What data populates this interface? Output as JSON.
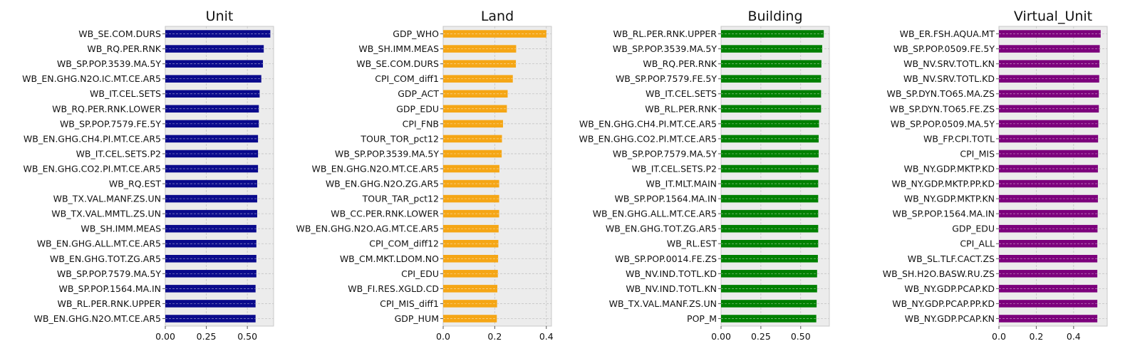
{
  "chart_data": [
    {
      "type": "bar",
      "orientation": "horizontal",
      "title": "Unit",
      "color": "#0a0a8c",
      "xlim": [
        0,
        0.66
      ],
      "xticks": [
        0,
        0.25,
        0.5
      ],
      "xtick_labels": [
        "0.00",
        "0.25",
        "0.50"
      ],
      "grid": true,
      "categories": [
        "WB_SE.COM.DURS",
        "WB_RQ.PER.RNK",
        "WB_SP.POP.3539.MA.5Y",
        "WB_EN.GHG.N2O.IC.MT.CE.AR5",
        "WB_IT.CEL.SETS",
        "WB_RQ.PER.RNK.LOWER",
        "WB_SP.POP.7579.FE.5Y",
        "WB_EN.GHG.CH4.PI.MT.CE.AR5",
        "WB_IT.CEL.SETS.P2",
        "WB_EN.GHG.CO2.PI.MT.CE.AR5",
        "WB_RQ.EST",
        "WB_TX.VAL.MANF.ZS.UN",
        "WB_TX.VAL.MMTL.ZS.UN",
        "WB_SH.IMM.MEAS",
        "WB_EN.GHG.ALL.MT.CE.AR5",
        "WB_EN.GHG.TOT.ZG.AR5",
        "WB_SP.POP.7579.MA.5Y",
        "WB_SP.POP.1564.MA.IN",
        "WB_RL.PER.RNK.UPPER",
        "WB_EN.GHG.N2O.MT.CE.AR5"
      ],
      "values": [
        0.64,
        0.6,
        0.595,
        0.585,
        0.575,
        0.57,
        0.57,
        0.565,
        0.565,
        0.565,
        0.56,
        0.56,
        0.56,
        0.555,
        0.555,
        0.555,
        0.555,
        0.55,
        0.55,
        0.55
      ]
    },
    {
      "type": "bar",
      "orientation": "horizontal",
      "title": "Land",
      "color": "#f5a615",
      "xlim": [
        0,
        0.42
      ],
      "xticks": [
        0,
        0.2,
        0.4
      ],
      "xtick_labels": [
        "0.0",
        "0.2",
        "0.4"
      ],
      "grid": true,
      "categories": [
        "GDP_WHO",
        "WB_SH.IMM.MEAS",
        "WB_SE.COM.DURS",
        "CPI_COM_diff1",
        "GDP_ACT",
        "GDP_EDU",
        "CPI_FNB",
        "TOUR_TOR_pct12",
        "WB_SP.POP.3539.MA.5Y",
        "WB_EN.GHG.N2O.MT.CE.AR5",
        "WB_EN.GHG.N2O.ZG.AR5",
        "TOUR_TAR_pct12",
        "WB_CC.PER.RNK.LOWER",
        "WB_EN.GHG.N2O.AG.MT.CE.AR5",
        "CPI_COM_diff12",
        "WB_CM.MKT.LDOM.NO",
        "CPI_EDU",
        "WB_FI.RES.XGLD.CD",
        "CPI_MIS_diff1",
        "GDP_HUM"
      ],
      "values": [
        0.4,
        0.283,
        0.282,
        0.27,
        0.25,
        0.247,
        0.232,
        0.228,
        0.227,
        0.218,
        0.217,
        0.217,
        0.217,
        0.215,
        0.214,
        0.213,
        0.212,
        0.21,
        0.209,
        0.208
      ]
    },
    {
      "type": "bar",
      "orientation": "horizontal",
      "title": "Building",
      "color": "#008000",
      "xlim": [
        0,
        0.68
      ],
      "xticks": [
        0,
        0.25,
        0.5
      ],
      "xtick_labels": [
        "0.00",
        "0.25",
        "0.50"
      ],
      "grid": true,
      "categories": [
        "WB_RL.PER.RNK.UPPER",
        "WB_SP.POP.3539.MA.5Y",
        "WB_RQ.PER.RNK",
        "WB_SP.POP.7579.FE.5Y",
        "WB_IT.CEL.SETS",
        "WB_RL.PER.RNK",
        "WB_EN.GHG.CH4.PI.MT.CE.AR5",
        "WB_EN.GHG.CO2.PI.MT.CE.AR5",
        "WB_SP.POP.7579.MA.5Y",
        "WB_IT.CEL.SETS.P2",
        "WB_IT.MLT.MAIN",
        "WB_SP.POP.1564.MA.IN",
        "WB_EN.GHG.ALL.MT.CE.AR5",
        "WB_EN.GHG.TOT.ZG.AR5",
        "WB_RL.EST",
        "WB_SP.POP.0014.FE.ZS",
        "WB_NV.IND.TOTL.KD",
        "WB_NV.IND.TOTL.KN",
        "WB_TX.VAL.MANF.ZS.UN",
        "POP_M"
      ],
      "values": [
        0.645,
        0.635,
        0.63,
        0.628,
        0.628,
        0.628,
        0.615,
        0.613,
        0.613,
        0.612,
        0.61,
        0.61,
        0.61,
        0.61,
        0.61,
        0.608,
        0.603,
        0.603,
        0.6,
        0.598
      ]
    },
    {
      "type": "bar",
      "orientation": "horizontal",
      "title": "Virtual_Unit",
      "color": "#7c007c",
      "xlim": [
        0,
        0.58
      ],
      "xticks": [
        0,
        0.2,
        0.4
      ],
      "xtick_labels": [
        "0.0",
        "0.2",
        "0.4"
      ],
      "grid": true,
      "categories": [
        "WB_ER.FSH.AQUA.MT",
        "WB_SP.POP.0509.FE.5Y",
        "WB_NV.SRV.TOTL.KN",
        "WB_NV.SRV.TOTL.KD",
        "WB_SP.DYN.TO65.MA.ZS",
        "WB_SP.DYN.TO65.FE.ZS",
        "WB_SP.POP.0509.MA.5Y",
        "WB_FP.CPI.TOTL",
        "CPI_MIS",
        "WB_NY.GDP.MKTP.KD",
        "WB_NY.GDP.MKTP.PP.KD",
        "WB_NY.GDP.MKTP.KN",
        "WB_SP.POP.1564.MA.IN",
        "GDP_EDU",
        "CPI_ALL",
        "WB_SL.TLF.CACT.ZS",
        "WB_SH.H2O.BASW.RU.ZS",
        "WB_NY.GDP.PCAP.KD",
        "WB_NY.GDP.PCAP.PP.KD",
        "WB_NY.GDP.PCAP.KN"
      ],
      "values": [
        0.545,
        0.54,
        0.538,
        0.537,
        0.535,
        0.535,
        0.532,
        0.531,
        0.531,
        0.53,
        0.53,
        0.53,
        0.529,
        0.528,
        0.527,
        0.527,
        0.527,
        0.527,
        0.527,
        0.527
      ]
    }
  ]
}
